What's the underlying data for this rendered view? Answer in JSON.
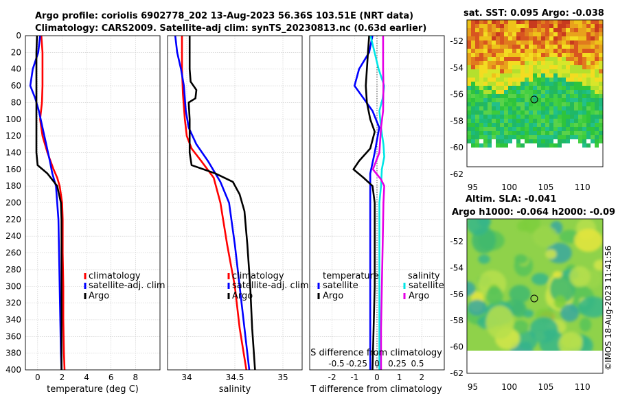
{
  "header": {
    "line1": "Argo profile: coriolis 6902778_202 13-Aug-2023 56.36S 103.51E (NRT data)",
    "line2": "Climatology: CARS2009. Satellite-adj clim: synTS_20230813.nc (0.63d earlier)"
  },
  "colors": {
    "climatology": "#ff0000",
    "satellite": "#0000ff",
    "argo": "#000000",
    "sal_sat": "#00e6e6",
    "sal_argo": "#e600e6"
  },
  "depth_axis": {
    "ylim": [
      400,
      0
    ],
    "ticks": [
      "0",
      "20",
      "40",
      "60",
      "80",
      "100",
      "120",
      "140",
      "160",
      "180",
      "200",
      "220",
      "240",
      "260",
      "280",
      "300",
      "320",
      "340",
      "360",
      "380",
      "400"
    ]
  },
  "chart_data": [
    {
      "type": "line",
      "id": "temp",
      "xlabel": "temperature (deg C)",
      "xlim": [
        -1,
        10
      ],
      "xticks": [
        0,
        2,
        4,
        6,
        8
      ],
      "xtick_labels": [
        "0",
        "2",
        "4",
        "6",
        "8"
      ],
      "ylim": [
        400,
        0
      ],
      "legend": [
        "climatology",
        "satellite-adj. clim",
        "Argo"
      ],
      "series": [
        {
          "name": "climatology",
          "color": "red",
          "points": [
            [
              0.3,
              0
            ],
            [
              0.4,
              20
            ],
            [
              0.4,
              40
            ],
            [
              0.4,
              60
            ],
            [
              0.35,
              80
            ],
            [
              0.2,
              100
            ],
            [
              0.4,
              120
            ],
            [
              0.8,
              140
            ],
            [
              1.3,
              160
            ],
            [
              1.6,
              170
            ],
            [
              1.8,
              180
            ],
            [
              2.0,
              200
            ],
            [
              2.05,
              220
            ],
            [
              2.05,
              260
            ],
            [
              2.1,
              300
            ],
            [
              2.1,
              340
            ],
            [
              2.15,
              380
            ],
            [
              2.2,
              400
            ]
          ]
        },
        {
          "name": "satellite-adj. clim",
          "color": "blue",
          "points": [
            [
              0.2,
              0
            ],
            [
              0.05,
              20
            ],
            [
              -0.4,
              40
            ],
            [
              -0.6,
              60
            ],
            [
              -0.2,
              75
            ],
            [
              0.1,
              90
            ],
            [
              0.4,
              110
            ],
            [
              0.7,
              130
            ],
            [
              1.0,
              150
            ],
            [
              1.2,
              165
            ],
            [
              1.5,
              180
            ],
            [
              1.6,
              200
            ],
            [
              1.7,
              220
            ],
            [
              1.75,
              260
            ],
            [
              1.8,
              300
            ],
            [
              1.85,
              340
            ],
            [
              1.9,
              380
            ],
            [
              1.95,
              400
            ]
          ]
        },
        {
          "name": "Argo",
          "color": "black",
          "points": [
            [
              -0.05,
              0
            ],
            [
              -0.1,
              20
            ],
            [
              -0.1,
              60
            ],
            [
              -0.1,
              100
            ],
            [
              -0.1,
              140
            ],
            [
              0.0,
              155
            ],
            [
              0.8,
              165
            ],
            [
              1.6,
              180
            ],
            [
              1.9,
              200
            ],
            [
              1.95,
              220
            ],
            [
              1.95,
              400
            ]
          ]
        }
      ]
    },
    {
      "type": "line",
      "id": "sal",
      "xlabel": "salinity",
      "xlim": [
        33.8,
        35.2
      ],
      "xticks": [
        34,
        34.5,
        35
      ],
      "xtick_labels": [
        "34",
        "34.5",
        "35"
      ],
      "ylim": [
        400,
        0
      ],
      "legend": [
        "climatology",
        "satellite-adj. clim",
        "Argo"
      ],
      "series": [
        {
          "name": "climatology",
          "color": "red",
          "points": [
            [
              33.95,
              0
            ],
            [
              33.95,
              40
            ],
            [
              33.96,
              70
            ],
            [
              33.98,
              100
            ],
            [
              34.0,
              120
            ],
            [
              34.05,
              135
            ],
            [
              34.15,
              150
            ],
            [
              34.28,
              170
            ],
            [
              34.35,
              200
            ],
            [
              34.42,
              250
            ],
            [
              34.5,
              300
            ],
            [
              34.55,
              350
            ],
            [
              34.62,
              400
            ]
          ]
        },
        {
          "name": "satellite-adj. clim",
          "color": "blue",
          "points": [
            [
              33.88,
              0
            ],
            [
              33.9,
              20
            ],
            [
              33.94,
              40
            ],
            [
              33.97,
              60
            ],
            [
              33.99,
              90
            ],
            [
              34.02,
              110
            ],
            [
              34.1,
              130
            ],
            [
              34.22,
              150
            ],
            [
              34.35,
              175
            ],
            [
              34.44,
              200
            ],
            [
              34.5,
              250
            ],
            [
              34.55,
              300
            ],
            [
              34.6,
              350
            ],
            [
              34.65,
              400
            ]
          ]
        },
        {
          "name": "Argo",
          "color": "black",
          "points": [
            [
              34.03,
              0
            ],
            [
              34.03,
              40
            ],
            [
              34.04,
              55
            ],
            [
              34.1,
              65
            ],
            [
              34.09,
              75
            ],
            [
              34.02,
              80
            ],
            [
              34.03,
              100
            ],
            [
              34.03,
              140
            ],
            [
              34.05,
              155
            ],
            [
              34.3,
              165
            ],
            [
              34.48,
              175
            ],
            [
              34.55,
              190
            ],
            [
              34.6,
              210
            ],
            [
              34.63,
              250
            ],
            [
              34.66,
              300
            ],
            [
              34.68,
              350
            ],
            [
              34.71,
              400
            ]
          ]
        }
      ]
    },
    {
      "type": "line",
      "id": "diff",
      "xlabel": "T difference from climatology",
      "xlabel_top": "S difference from climatology",
      "xlim": [
        -3,
        3
      ],
      "xticks": [
        -2,
        -1,
        0,
        1,
        2
      ],
      "xtick_labels": [
        "-2",
        "-1",
        "0",
        "1",
        "2"
      ],
      "xticks_top": [
        -0.5,
        -0.25,
        0,
        0.25,
        0.5
      ],
      "xtick_labels_top": [
        "-0.5",
        "-0.25",
        "0",
        "0.25",
        "0.5"
      ],
      "ylim": [
        400,
        0
      ],
      "legend_left_title": "temperature",
      "legend_left": [
        "satellite",
        "Argo"
      ],
      "legend_right_title": "salinity",
      "legend_right": [
        "satellite",
        "Argo"
      ],
      "series": [
        {
          "name": "temperature satellite",
          "color": "blue",
          "points": [
            [
              -0.2,
              0
            ],
            [
              -0.35,
              20
            ],
            [
              -0.8,
              40
            ],
            [
              -1.0,
              60
            ],
            [
              -0.6,
              75
            ],
            [
              -0.2,
              90
            ],
            [
              0.1,
              110
            ],
            [
              -0.1,
              140
            ],
            [
              -0.3,
              165
            ],
            [
              -0.3,
              200
            ],
            [
              -0.3,
              260
            ],
            [
              -0.3,
              300
            ],
            [
              -0.3,
              350
            ],
            [
              -0.3,
              400
            ]
          ]
        },
        {
          "name": "temperature Argo",
          "color": "black",
          "points": [
            [
              -0.35,
              0
            ],
            [
              -0.4,
              20
            ],
            [
              -0.45,
              40
            ],
            [
              -0.5,
              60
            ],
            [
              -0.45,
              80
            ],
            [
              -0.3,
              100
            ],
            [
              -0.1,
              115
            ],
            [
              -0.3,
              135
            ],
            [
              -0.8,
              150
            ],
            [
              -1.05,
              160
            ],
            [
              -0.6,
              170
            ],
            [
              -0.2,
              180
            ],
            [
              -0.1,
              200
            ],
            [
              -0.1,
              260
            ],
            [
              -0.1,
              300
            ],
            [
              -0.15,
              350
            ],
            [
              -0.2,
              400
            ]
          ]
        },
        {
          "name": "salinity satellite",
          "color": "cyan",
          "points": [
            [
              -0.08,
              0
            ],
            [
              -0.03,
              20
            ],
            [
              0.02,
              40
            ],
            [
              0.09,
              60
            ],
            [
              0.07,
              75
            ],
            [
              0.03,
              90
            ],
            [
              0.05,
              110
            ],
            [
              0.08,
              130
            ],
            [
              0.09,
              145
            ],
            [
              0.06,
              160
            ],
            [
              0.05,
              180
            ],
            [
              0.03,
              200
            ],
            [
              0.03,
              260
            ],
            [
              0.03,
              300
            ],
            [
              0.03,
              350
            ],
            [
              0.03,
              400
            ]
          ]
        },
        {
          "name": "salinity Argo",
          "color": "magenta",
          "points": [
            [
              0.075,
              0
            ],
            [
              0.075,
              40
            ],
            [
              0.08,
              60
            ],
            [
              0.075,
              90
            ],
            [
              0.05,
              110
            ],
            [
              0.03,
              140
            ],
            [
              -0.05,
              160
            ],
            [
              0.05,
              172
            ],
            [
              0.09,
              180
            ],
            [
              0.08,
              200
            ],
            [
              0.07,
              250
            ],
            [
              0.06,
              300
            ],
            [
              0.05,
              350
            ],
            [
              0.05,
              400
            ]
          ]
        }
      ]
    }
  ],
  "maps": {
    "sst": {
      "title": "sat. SST: 0.095 Argo: -0.038",
      "xticks": [
        "95",
        "100",
        "105",
        "110"
      ],
      "yticks": [
        "-52",
        "-54",
        "-56",
        "-58",
        "-60",
        "-62"
      ],
      "marker": {
        "lon": 103.51,
        "lat": -56.36
      }
    },
    "sla": {
      "title1": "Altim. SLA: -0.041",
      "title2": "Argo h1000: -0.064 h2000: -0.09",
      "xticks": [
        "95",
        "100",
        "105",
        "110"
      ],
      "yticks": [
        "-52",
        "-54",
        "-56",
        "-58",
        "-60",
        "-62"
      ],
      "marker": {
        "lon": 103.51,
        "lat": -56.36
      }
    }
  },
  "footer": {
    "imos": "©IMOS 18-Aug-2023 11:41:56"
  }
}
